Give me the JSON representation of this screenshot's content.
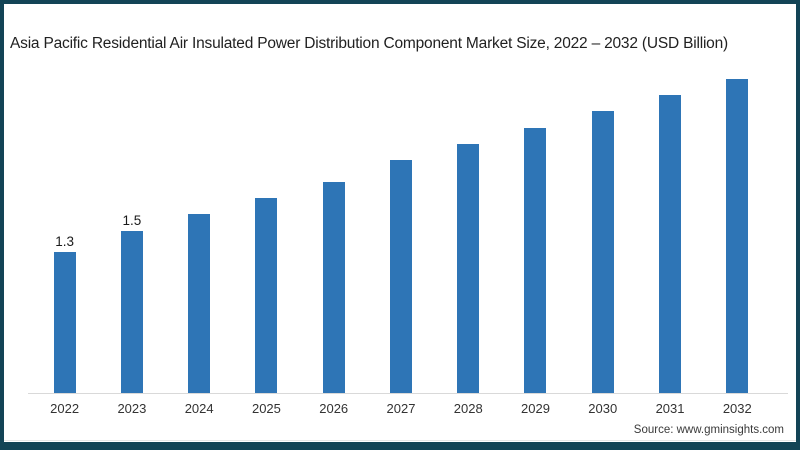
{
  "frame": {
    "border_color": "#134456",
    "background": "#ffffff"
  },
  "title": "Asia Pacific Residential Air Insulated Power Distribution Component Market Size, 2022 – 2032 (USD Billion)",
  "source": "Source: www.gminsights.com",
  "chart_data": {
    "type": "bar",
    "title": "Asia Pacific Residential Air Insulated Power Distribution Component Market Size, 2022 – 2032 (USD Billion)",
    "categories": [
      "2022",
      "2023",
      "2024",
      "2025",
      "2026",
      "2027",
      "2028",
      "2029",
      "2030",
      "2031",
      "2032"
    ],
    "values": [
      1.3,
      1.5,
      1.65,
      1.8,
      1.95,
      2.15,
      2.3,
      2.45,
      2.6,
      2.75,
      2.9
    ],
    "data_labels": [
      "1.3",
      "1.5",
      "",
      "",
      "",
      "",
      "",
      "",
      "",
      "",
      ""
    ],
    "xlabel": "",
    "ylabel": "",
    "ylim": [
      0,
      3.2
    ],
    "gridlines": false,
    "y_axis_visible": false,
    "legend": "none",
    "bar_color": "#2e75b6",
    "axis_line_color": "#d9d9d9",
    "label_color": "#1a1a1a"
  }
}
